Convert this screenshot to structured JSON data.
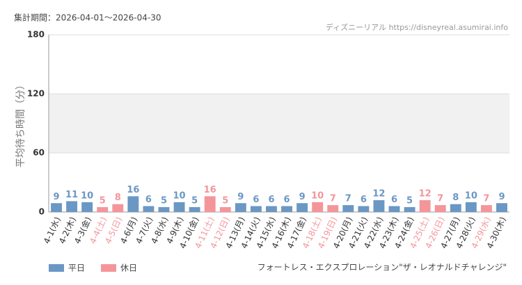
{
  "period": "集計期間：2026-04-01〜2026-04-30",
  "source": "ディズニーリアル https://disneyreal.asumirai.info",
  "chart_data": {
    "type": "bar",
    "y_label": "平均待ち時間（分）",
    "footer": "フォートレス・エクスプロレーション\"ザ・レオナルドチャレンジ\"",
    "categories": [
      "4-1(水)",
      "4-2(木)",
      "4-3(金)",
      "4-4(土)",
      "4-5(日)",
      "4-6(月)",
      "4-7(火)",
      "4-8(水)",
      "4-9(木)",
      "4-10(金)",
      "4-11(土)",
      "4-12(日)",
      "4-13(月)",
      "4-14(火)",
      "4-15(水)",
      "4-16(木)",
      "4-17(金)",
      "4-18(土)",
      "4-19(日)",
      "4-20(月)",
      "4-21(火)",
      "4-22(水)",
      "4-23(木)",
      "4-24(金)",
      "4-25(土)",
      "4-26(日)",
      "4-27(月)",
      "4-28(火)",
      "4-29(水)",
      "4-30(木)"
    ],
    "series": [
      {
        "name": "平日",
        "color": "#6b97c4",
        "values": [
          9,
          11,
          10,
          null,
          null,
          16,
          6,
          5,
          10,
          5,
          null,
          null,
          9,
          6,
          6,
          6,
          9,
          null,
          null,
          7,
          6,
          12,
          6,
          5,
          null,
          null,
          8,
          10,
          null,
          9
        ]
      },
      {
        "name": "休日",
        "color": "#f4959a",
        "values": [
          null,
          null,
          null,
          5,
          8,
          null,
          null,
          null,
          null,
          null,
          16,
          5,
          null,
          null,
          null,
          null,
          null,
          10,
          7,
          null,
          null,
          null,
          null,
          null,
          12,
          7,
          null,
          null,
          7,
          null
        ]
      }
    ],
    "ylim": [
      0,
      180
    ],
    "yticks": [
      0,
      60,
      120,
      180
    ],
    "grid": true
  }
}
